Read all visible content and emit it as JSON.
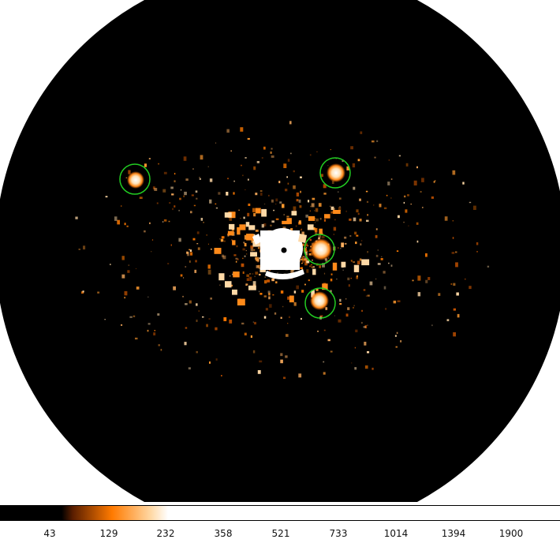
{
  "image": {
    "colormap": [
      "#000000",
      "#000000",
      "#5a1e00",
      "#ff7a00",
      "#ffd9a6",
      "#ffffff",
      "#ffffff"
    ],
    "marker_color": "#22cc22"
  },
  "colorbar": {
    "ticks": [
      "43",
      "129",
      "232",
      "358",
      "521",
      "733",
      "1014",
      "1394",
      "1900"
    ]
  }
}
